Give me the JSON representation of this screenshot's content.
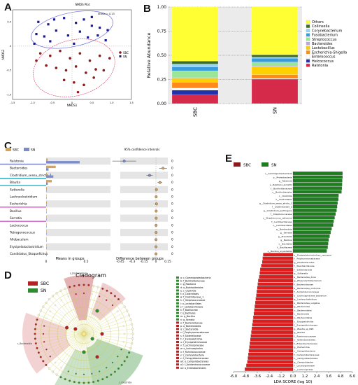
{
  "panel_labels": {
    "a": "A",
    "b": "B",
    "c": "C",
    "d": "D",
    "e": "E"
  },
  "colors": {
    "sbc": "#b22222",
    "sn": "#2e8b2e",
    "sbc_c": "#d4a35c",
    "sn_c": "#7b8cc9",
    "nmds_sbc": "#8b1a1a",
    "nmds_sn": "#1a1a8b"
  },
  "chart_data": [
    {
      "type": "scatter",
      "panel": "A",
      "title": "NMDS Plot",
      "xlabel": "NMDS1",
      "ylabel": "NMDS2",
      "xticks": [
        "-1.5",
        "-1.0",
        "-0.5",
        "0",
        "0.5",
        "1.0",
        "1.5"
      ],
      "yticks": [
        "0.5",
        "0",
        "-0.5",
        "-1.0"
      ],
      "xlim": [
        -1.5,
        1.5
      ],
      "ylim": [
        -1.1,
        0.75
      ],
      "legend": [
        "SBC",
        "SN"
      ],
      "stress_label": "Stress = 0.13",
      "series": [
        {
          "name": "SN",
          "points": [
            [
              -0.85,
              0.5
            ],
            [
              -0.6,
              0.45
            ],
            [
              -0.45,
              0.55
            ],
            [
              -0.2,
              0.58
            ],
            [
              0.1,
              0.48
            ],
            [
              0.3,
              0.55
            ],
            [
              0.5,
              0.42
            ],
            [
              0.7,
              0.38
            ],
            [
              0.9,
              0.33
            ],
            [
              -0.9,
              0.25
            ],
            [
              -0.7,
              0.2
            ],
            [
              -0.4,
              0.32
            ],
            [
              -0.1,
              0.22
            ],
            [
              0.2,
              0.3
            ],
            [
              0.4,
              0.18
            ],
            [
              0.65,
              0.22
            ],
            [
              -0.55,
              0.1
            ],
            [
              0.05,
              0.05
            ],
            [
              0.85,
              0.12
            ],
            [
              -0.95,
              0.05
            ],
            [
              0.5,
              0.6
            ]
          ]
        },
        {
          "name": "SBC",
          "points": [
            [
              -0.8,
              -0.15
            ],
            [
              -0.55,
              -0.2
            ],
            [
              -0.3,
              -0.1
            ],
            [
              -0.05,
              -0.25
            ],
            [
              0.2,
              -0.15
            ],
            [
              0.45,
              -0.3
            ],
            [
              0.7,
              -0.2
            ],
            [
              -0.65,
              -0.4
            ],
            [
              -0.4,
              -0.45
            ],
            [
              -0.15,
              -0.5
            ],
            [
              0.1,
              -0.42
            ],
            [
              0.35,
              -0.55
            ],
            [
              0.6,
              -0.48
            ],
            [
              -0.2,
              -0.7
            ],
            [
              0.05,
              -0.75
            ],
            [
              0.3,
              -0.8
            ],
            [
              0.55,
              -0.65
            ],
            [
              0.8,
              -0.5
            ],
            [
              -0.9,
              -0.3
            ],
            [
              0.95,
              -0.25
            ],
            [
              0.15,
              -0.95
            ]
          ]
        }
      ]
    },
    {
      "type": "bar",
      "panel": "B",
      "stacked": true,
      "categories": [
        "SBC",
        "SN"
      ],
      "ylabel": "Relative Abundance",
      "ylim": [
        0,
        1
      ],
      "yticks": [
        "0.00",
        "0.25",
        "0.50",
        "0.75",
        "1.00"
      ],
      "series": [
        {
          "name": "Ralstonia",
          "color": "#d62a4a",
          "values": [
            0.09,
            0.25
          ]
        },
        {
          "name": "Helcococcus",
          "color": "#2233aa",
          "values": [
            0.05,
            0.005
          ]
        },
        {
          "name": "Enterococcus",
          "color": "#ffffff",
          "values": [
            0.02,
            0.005
          ]
        },
        {
          "name": "Escherichia-Shigella",
          "color": "#ff8a1a",
          "values": [
            0.06,
            0.04
          ]
        },
        {
          "name": "Lactobacillus",
          "color": "#ffd000",
          "values": [
            0.04,
            0.08
          ]
        },
        {
          "name": "Bacteroides",
          "color": "#bfa8d8",
          "values": [
            0.01,
            0.01
          ]
        },
        {
          "name": "Streptococcus",
          "color": "#99e699",
          "values": [
            0.07,
            0.04
          ]
        },
        {
          "name": "Fusobacterium",
          "color": "#3a9bdc",
          "values": [
            0.04,
            0.04
          ]
        },
        {
          "name": "Corynebacterium",
          "color": "#9ad4ec",
          "values": [
            0.03,
            0.01
          ]
        },
        {
          "name": "Collinsella",
          "color": "#3d6b2a",
          "values": [
            0.03,
            0.025
          ]
        },
        {
          "name": "Others",
          "color": "#ffff33",
          "values": [
            0.56,
            0.5
          ]
        }
      ]
    },
    {
      "type": "bar",
      "panel": "C",
      "orientation": "horizontal",
      "legend": [
        "SBC",
        "SN"
      ],
      "ci_title": "95% confidence intervals",
      "xlabel_left": "Means in groups",
      "xlabel_right": "Difference between groups",
      "left_ticks": [
        "0",
        "0.5"
      ],
      "right_ticks": [
        "-0.45",
        "-0.3",
        "-0.15",
        "0",
        "0.15"
      ],
      "categories": [
        "Ralstonia",
        "Bacteroides",
        "Clostridium_sensu_stricto_1",
        "Blautia",
        "Sutterella",
        "Lachnoclostridium",
        "Escherichia",
        "Bacillus",
        "Serratia",
        "Lactococcus",
        "Tetragenococcus",
        "Allobaculum",
        "Erysipelatoclostridium",
        "Candidatus_Stoquefichus"
      ],
      "highlight": [
        true,
        false,
        true,
        true,
        false,
        false,
        true,
        false,
        true,
        false,
        false,
        false,
        false,
        false
      ],
      "series": [
        {
          "name": "SBC",
          "values": [
            0.02,
            0.12,
            0.01,
            0.07,
            0.01,
            0.005,
            0.01,
            0.004,
            0.004,
            0.003,
            0.003,
            0.002,
            0.002,
            0.001
          ]
        },
        {
          "name": "SN",
          "values": [
            0.42,
            0.03,
            0.09,
            0.02,
            0.004,
            0.002,
            0.003,
            0.001,
            0.001,
            0.001,
            0.001,
            0.001,
            0.001,
            0.001
          ]
        }
      ],
      "difference": [
        -0.4,
        0.09,
        -0.08,
        0.05,
        0.006,
        0.003,
        0.007,
        0.003,
        0.003,
        0.002,
        0.002,
        0.001,
        0.001,
        0.001
      ],
      "ci": [
        [
          -0.55,
          -0.25
        ],
        [
          0.04,
          0.14
        ],
        [
          -0.12,
          -0.04
        ],
        [
          0.02,
          0.08
        ],
        [
          0.0,
          0.012
        ],
        [
          0.0,
          0.006
        ],
        [
          0.001,
          0.012
        ],
        [
          0.0,
          0.006
        ],
        [
          0.0,
          0.006
        ],
        [
          0.0,
          0.004
        ],
        [
          0.0,
          0.004
        ],
        [
          0.0,
          0.002
        ],
        [
          0.0,
          0.002
        ],
        [
          0.0,
          0.002
        ]
      ],
      "pvalue_labels": [
        "0",
        "0",
        "0",
        "0",
        "0",
        "0",
        "0",
        "0",
        "0",
        "0",
        "0",
        "0",
        "0",
        "0"
      ]
    },
    {
      "type": "bar",
      "panel": "E",
      "orientation": "horizontal",
      "legend": [
        "SBC",
        "SN"
      ],
      "xlabel": "LDA SCORE (log 10)",
      "xlim": [
        -6.0,
        6.0
      ],
      "xticks": [
        "-6.0",
        "-4.8",
        "-3.6",
        "-2.4",
        "-1.2",
        "0.0",
        "1.2",
        "2.4",
        "3.6",
        "4.8",
        "6.0"
      ],
      "categories": [
        "c__Gammaproteobacteria",
        "p__Proteobacteria",
        "g__Ralstonia",
        "s__Ralstonia_pickettii",
        "f__Burkholderiaceae",
        "o__Burkholderiales",
        "c__Clostridia",
        "o__Clostridiales",
        "g__Clostridium_sensu_stricto_1",
        "f__Clostridiaceae_1",
        "g__Clostridium_perfringens",
        "f__Streptococcaceae",
        "o__Streptococcus_salivarius",
        "f__Lactobacillaceae",
        "o__Lactobacillales",
        "g__Romboutsia",
        "g__Serratia",
        "g__Prevotella",
        "g__Bacillus",
        "o__Bacillales",
        "f__Bacillaceae",
        "s__Bacillus_aryabhattai",
        "s__Erysipelatoclostridium_ramosum",
        "f__Porphyromonadaceae",
        "g__Parabacteroides",
        "f__Paenibacillaceae",
        "f__Sutterellaceae",
        "g__Sutterella",
        "s__Bacteroides_dorei",
        "g__Phascolarctobacterium",
        "f__Bacteroidaceae",
        "s__Bacteroides_uniformis",
        "f__Acidaminococcaceae",
        "s__Lachnospiraceae_bacterium",
        "g__Lachnoclostridium",
        "s__Bacteroides_vulgatus",
        "g__Bacteroides",
        "o__Bacteroidales",
        "c__Bacteroidia",
        "p__Bacteroidetes",
        "c__Erysipelotrichia",
        "f__Erysipelotrichaceae",
        "g__Blautia_sp_N26",
        "g__Blautia",
        "f__Ruminococcaceae",
        "o__Enterobacterales",
        "f__Enterobacteriaceae",
        "g__Escherichia",
        "c__Campylobacteria",
        "f__Campylobacteraceae",
        "o__Campylobacterales",
        "g__Campylobacter",
        "f__Lachnospiraceae",
        "o__Lachnospirales"
      ],
      "values": [
        5.0,
        5.0,
        4.97,
        4.95,
        4.93,
        4.9,
        4.6,
        4.58,
        4.5,
        4.45,
        4.4,
        4.3,
        4.2,
        4.1,
        4.05,
        3.9,
        3.8,
        3.7,
        3.6,
        3.55,
        3.5,
        3.4,
        -3.0,
        -3.05,
        -3.1,
        -3.2,
        -3.3,
        -3.35,
        -3.4,
        -3.5,
        -3.55,
        -3.6,
        -3.65,
        -3.7,
        -3.75,
        -3.8,
        -3.85,
        -3.9,
        -3.95,
        -4.0,
        -4.05,
        -4.1,
        -4.15,
        -4.2,
        -4.25,
        -4.3,
        -4.35,
        -4.4,
        -4.45,
        -4.5,
        -4.55,
        -4.6,
        -4.7,
        -4.85
      ]
    }
  ],
  "cladogram": {
    "title": "Cladogram",
    "legend": [
      "SBC",
      "SN"
    ],
    "taxa_sn": [
      "a: c_Gammaproteobacteria",
      "b: f_Burkholderiaceae",
      "c: g_Ralstonia",
      "d: o_Burkholderiales",
      "e: c_Clostridia",
      "f: o_Clostridiales",
      "g: f_Clostridiaceae_1",
      "h: f_Streptococcaceae",
      "i: o_Lactobacillales",
      "j: f_Lactobacillaceae",
      "k: f_Bacillaceae",
      "l: o_Bacillales",
      "m: g_Bacillus",
      "n: g_Serratia"
    ],
    "taxa_sbc": [
      "o: f_Bacteroidaceae",
      "p: o_Bacteroidales",
      "q: c_Bacteroidia",
      "r: f_Porphyromonadaceae",
      "s: f_Sutterellaceae",
      "t: c_Erysipelotrichia",
      "u: f_Erysipelotrichaceae",
      "v: f_Lachnospiraceae",
      "w: o_Lachnospirales",
      "x: f_Ruminococcaceae",
      "y: c_Campylobacteria",
      "z: f_Campylobacteraceae",
      "a0: o_Campylobacterales",
      "a1: f_Acidaminococcaceae",
      "a2: o_Enterobacterales"
    ],
    "sector_labels": [
      "c_Bacteroidia",
      "o_Bacteroidales",
      "c_Clostridia",
      "c_Gammaproteobacteria"
    ]
  }
}
